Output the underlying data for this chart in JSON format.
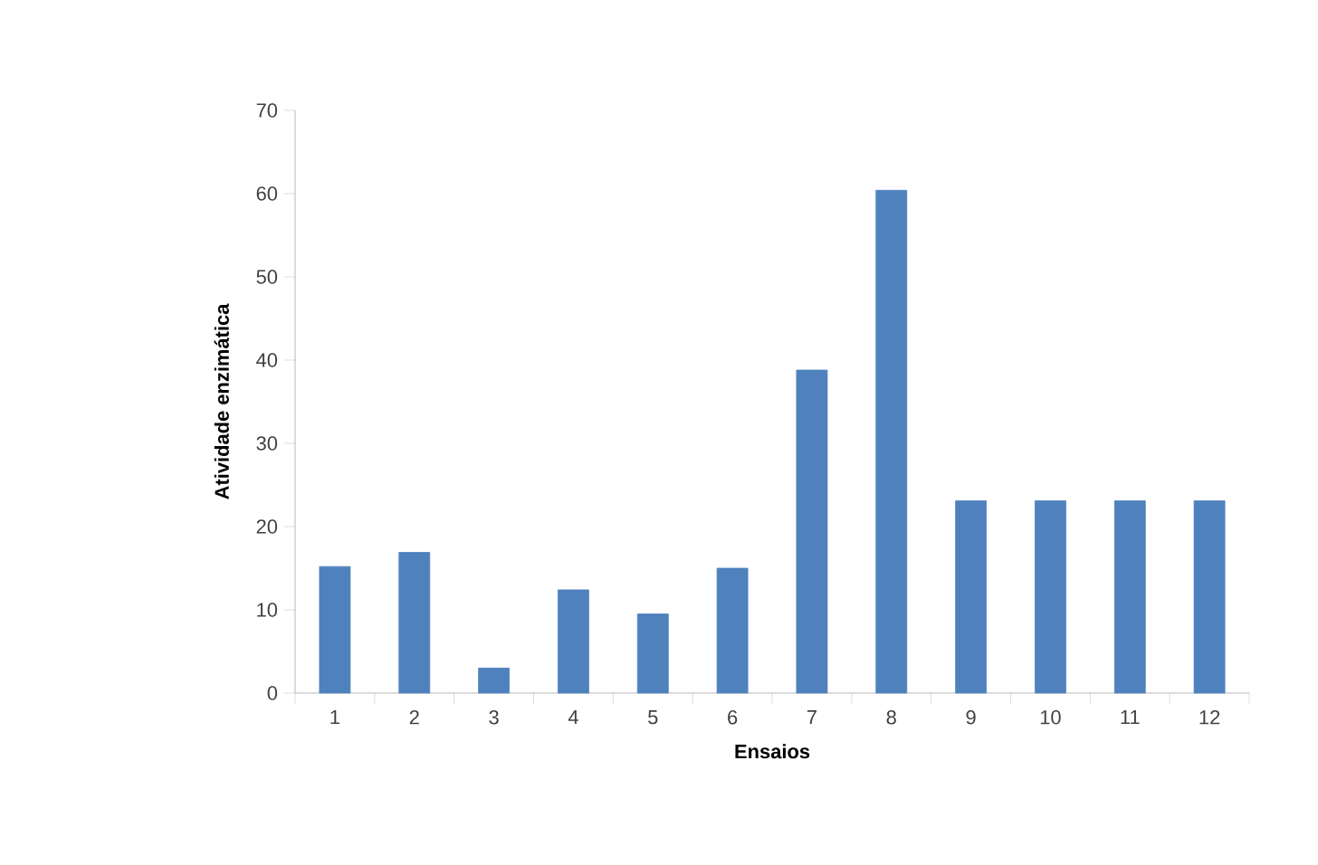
{
  "chart_data": {
    "type": "bar",
    "xlabel": "Ensaios",
    "ylabel": "Atividade enzimática",
    "categories": [
      "1",
      "2",
      "3",
      "4",
      "5",
      "6",
      "7",
      "8",
      "9",
      "10",
      "11",
      "12"
    ],
    "values": [
      15.2,
      16.9,
      3.0,
      12.4,
      9.5,
      15.0,
      38.8,
      60.4,
      23.1,
      23.1,
      23.1,
      23.1
    ],
    "color": "#4f81bd",
    "ylim": [
      0,
      70
    ],
    "yticks": [
      0,
      10,
      20,
      30,
      40,
      50,
      60,
      70
    ]
  }
}
